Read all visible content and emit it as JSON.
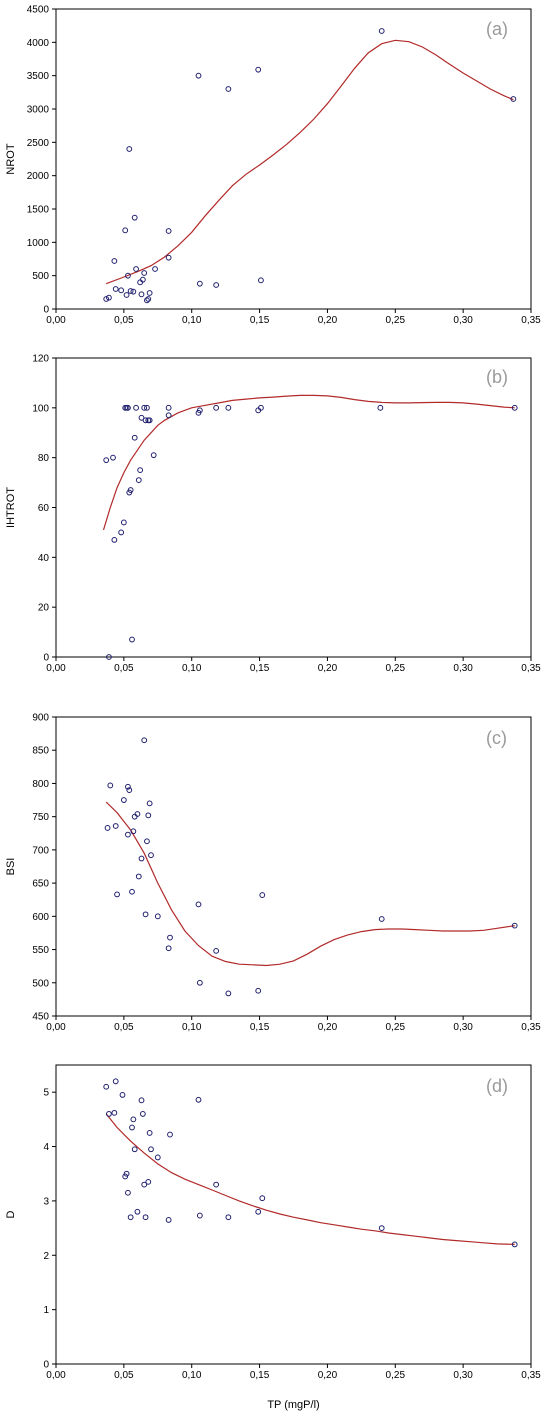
{
  "chart_data": [
    {
      "type": "scatter",
      "panel_label": "(a)",
      "ylabel": "NROT",
      "xlabel": "",
      "xlim": [
        0,
        0.35
      ],
      "ylim": [
        0,
        4500
      ],
      "xticks": [
        0,
        0.05,
        0.1,
        0.15,
        0.2,
        0.25,
        0.3,
        0.35
      ],
      "xtick_labels": [
        "0,00",
        "0,05",
        "0,10",
        "0,15",
        "0,20",
        "0,25",
        "0,30",
        "0,35"
      ],
      "yticks": [
        0,
        500,
        1000,
        1500,
        2000,
        2500,
        3000,
        3500,
        4000,
        4500
      ],
      "ytick_labels": [
        "0",
        "500",
        "1000",
        "1500",
        "2000",
        "2500",
        "3000",
        "3500",
        "4000",
        "4500"
      ],
      "grid": false,
      "points": [
        [
          0.037,
          150
        ],
        [
          0.039,
          170
        ],
        [
          0.043,
          720
        ],
        [
          0.044,
          300
        ],
        [
          0.048,
          280
        ],
        [
          0.051,
          1180
        ],
        [
          0.052,
          210
        ],
        [
          0.053,
          500
        ],
        [
          0.054,
          2400
        ],
        [
          0.055,
          270
        ],
        [
          0.057,
          260
        ],
        [
          0.058,
          1370
        ],
        [
          0.059,
          600
        ],
        [
          0.062,
          400
        ],
        [
          0.063,
          220
        ],
        [
          0.064,
          440
        ],
        [
          0.065,
          540
        ],
        [
          0.067,
          130
        ],
        [
          0.068,
          150
        ],
        [
          0.069,
          240
        ],
        [
          0.073,
          600
        ],
        [
          0.083,
          770
        ],
        [
          0.083,
          1170
        ],
        [
          0.105,
          3500
        ],
        [
          0.106,
          380
        ],
        [
          0.118,
          360
        ],
        [
          0.127,
          3300
        ],
        [
          0.149,
          3590
        ],
        [
          0.151,
          430
        ],
        [
          0.24,
          4170
        ],
        [
          0.337,
          3150
        ]
      ],
      "fit": [
        [
          0.037,
          380
        ],
        [
          0.05,
          480
        ],
        [
          0.06,
          560
        ],
        [
          0.07,
          650
        ],
        [
          0.08,
          780
        ],
        [
          0.09,
          950
        ],
        [
          0.1,
          1150
        ],
        [
          0.11,
          1400
        ],
        [
          0.12,
          1630
        ],
        [
          0.13,
          1850
        ],
        [
          0.14,
          2020
        ],
        [
          0.15,
          2160
        ],
        [
          0.16,
          2310
        ],
        [
          0.17,
          2470
        ],
        [
          0.18,
          2650
        ],
        [
          0.19,
          2850
        ],
        [
          0.2,
          3080
        ],
        [
          0.21,
          3340
        ],
        [
          0.22,
          3610
        ],
        [
          0.23,
          3840
        ],
        [
          0.24,
          3980
        ],
        [
          0.25,
          4030
        ],
        [
          0.26,
          4010
        ],
        [
          0.27,
          3930
        ],
        [
          0.28,
          3810
        ],
        [
          0.29,
          3670
        ],
        [
          0.3,
          3540
        ],
        [
          0.31,
          3420
        ],
        [
          0.32,
          3300
        ],
        [
          0.33,
          3200
        ],
        [
          0.337,
          3140
        ]
      ]
    },
    {
      "type": "scatter",
      "panel_label": "(b)",
      "ylabel": "IHTROT",
      "xlabel": "",
      "xlim": [
        0,
        0.35
      ],
      "ylim": [
        0,
        120
      ],
      "xticks": [
        0,
        0.05,
        0.1,
        0.15,
        0.2,
        0.25,
        0.3,
        0.35
      ],
      "xtick_labels": [
        "0,00",
        "0,05",
        "0,10",
        "0,15",
        "0,20",
        "0,25",
        "0,30",
        "0,35"
      ],
      "yticks": [
        0,
        20,
        40,
        60,
        80,
        100,
        120
      ],
      "ytick_labels": [
        "0",
        "20",
        "40",
        "60",
        "80",
        "100",
        "120"
      ],
      "grid": false,
      "points": [
        [
          0.037,
          79
        ],
        [
          0.039,
          0
        ],
        [
          0.042,
          80
        ],
        [
          0.043,
          47
        ],
        [
          0.048,
          50
        ],
        [
          0.05,
          54
        ],
        [
          0.051,
          100
        ],
        [
          0.052,
          100
        ],
        [
          0.053,
          100
        ],
        [
          0.054,
          66
        ],
        [
          0.055,
          67
        ],
        [
          0.056,
          7
        ],
        [
          0.058,
          88
        ],
        [
          0.059,
          100
        ],
        [
          0.061,
          71
        ],
        [
          0.062,
          75
        ],
        [
          0.063,
          96
        ],
        [
          0.065,
          100
        ],
        [
          0.066,
          95
        ],
        [
          0.067,
          100
        ],
        [
          0.068,
          95
        ],
        [
          0.069,
          95
        ],
        [
          0.072,
          81
        ],
        [
          0.083,
          97
        ],
        [
          0.083,
          100
        ],
        [
          0.105,
          98
        ],
        [
          0.106,
          99
        ],
        [
          0.118,
          100
        ],
        [
          0.127,
          100
        ],
        [
          0.149,
          99
        ],
        [
          0.151,
          100
        ],
        [
          0.239,
          100
        ],
        [
          0.338,
          100
        ]
      ],
      "fit": [
        [
          0.035,
          51
        ],
        [
          0.04,
          60
        ],
        [
          0.045,
          68
        ],
        [
          0.05,
          74
        ],
        [
          0.055,
          79
        ],
        [
          0.06,
          83
        ],
        [
          0.065,
          87
        ],
        [
          0.07,
          90
        ],
        [
          0.075,
          93
        ],
        [
          0.08,
          95
        ],
        [
          0.09,
          98
        ],
        [
          0.1,
          100
        ],
        [
          0.11,
          101
        ],
        [
          0.12,
          102
        ],
        [
          0.13,
          103
        ],
        [
          0.14,
          103.5
        ],
        [
          0.15,
          104
        ],
        [
          0.16,
          104.3
        ],
        [
          0.17,
          104.7
        ],
        [
          0.18,
          105
        ],
        [
          0.19,
          105
        ],
        [
          0.2,
          104.8
        ],
        [
          0.21,
          104.2
        ],
        [
          0.22,
          103.3
        ],
        [
          0.23,
          102.6
        ],
        [
          0.24,
          102.2
        ],
        [
          0.25,
          102
        ],
        [
          0.26,
          102
        ],
        [
          0.27,
          102.1
        ],
        [
          0.28,
          102.2
        ],
        [
          0.29,
          102.2
        ],
        [
          0.3,
          102
        ],
        [
          0.31,
          101.5
        ],
        [
          0.32,
          100.9
        ],
        [
          0.33,
          100.3
        ],
        [
          0.338,
          100
        ]
      ]
    },
    {
      "type": "scatter",
      "panel_label": "(c)",
      "ylabel": "BSI",
      "xlabel": "",
      "xlim": [
        0,
        0.35
      ],
      "ylim": [
        450,
        900
      ],
      "xticks": [
        0,
        0.05,
        0.1,
        0.15,
        0.2,
        0.25,
        0.3,
        0.35
      ],
      "xtick_labels": [
        "0,00",
        "0,05",
        "0,10",
        "0,15",
        "0,20",
        "0,25",
        "0,30",
        "0,35"
      ],
      "yticks": [
        450,
        500,
        550,
        600,
        650,
        700,
        750,
        800,
        850,
        900
      ],
      "ytick_labels": [
        "450",
        "500",
        "550",
        "600",
        "650",
        "700",
        "750",
        "800",
        "850",
        "900"
      ],
      "grid": false,
      "points": [
        [
          0.038,
          733
        ],
        [
          0.04,
          797
        ],
        [
          0.044,
          736
        ],
        [
          0.045,
          633
        ],
        [
          0.05,
          775
        ],
        [
          0.053,
          795
        ],
        [
          0.054,
          790
        ],
        [
          0.053,
          723
        ],
        [
          0.056,
          637
        ],
        [
          0.057,
          728
        ],
        [
          0.058,
          750
        ],
        [
          0.06,
          754
        ],
        [
          0.061,
          660
        ],
        [
          0.063,
          687
        ],
        [
          0.065,
          865
        ],
        [
          0.066,
          603
        ],
        [
          0.067,
          713
        ],
        [
          0.068,
          752
        ],
        [
          0.069,
          770
        ],
        [
          0.07,
          692
        ],
        [
          0.075,
          600
        ],
        [
          0.083,
          552
        ],
        [
          0.084,
          568
        ],
        [
          0.105,
          618
        ],
        [
          0.106,
          500
        ],
        [
          0.118,
          548
        ],
        [
          0.127,
          484
        ],
        [
          0.149,
          488
        ],
        [
          0.152,
          632
        ],
        [
          0.24,
          596
        ],
        [
          0.338,
          586
        ]
      ],
      "fit": [
        [
          0.037,
          772
        ],
        [
          0.045,
          756
        ],
        [
          0.055,
          730
        ],
        [
          0.065,
          695
        ],
        [
          0.075,
          650
        ],
        [
          0.085,
          610
        ],
        [
          0.095,
          578
        ],
        [
          0.105,
          556
        ],
        [
          0.115,
          540
        ],
        [
          0.125,
          532
        ],
        [
          0.135,
          528
        ],
        [
          0.145,
          527
        ],
        [
          0.155,
          526
        ],
        [
          0.165,
          528
        ],
        [
          0.175,
          533
        ],
        [
          0.185,
          543
        ],
        [
          0.195,
          555
        ],
        [
          0.205,
          565
        ],
        [
          0.215,
          572
        ],
        [
          0.225,
          577
        ],
        [
          0.235,
          580
        ],
        [
          0.245,
          581
        ],
        [
          0.255,
          581
        ],
        [
          0.265,
          580
        ],
        [
          0.275,
          579
        ],
        [
          0.285,
          578
        ],
        [
          0.295,
          578
        ],
        [
          0.305,
          578
        ],
        [
          0.315,
          579
        ],
        [
          0.325,
          582
        ],
        [
          0.335,
          585
        ],
        [
          0.338,
          586
        ]
      ]
    },
    {
      "type": "scatter",
      "panel_label": "(d)",
      "ylabel": "D",
      "xlabel": "TP (mgP/l)",
      "xlim": [
        0,
        0.35
      ],
      "ylim": [
        0,
        5.5
      ],
      "xticks": [
        0,
        0.05,
        0.1,
        0.15,
        0.2,
        0.25,
        0.3,
        0.35
      ],
      "xtick_labels": [
        "0,00",
        "0,05",
        "0,10",
        "0,15",
        "0,20",
        "0,25",
        "0,30",
        "0,35"
      ],
      "yticks": [
        0,
        1,
        2,
        3,
        4,
        5
      ],
      "ytick_labels": [
        "0",
        "1",
        "2",
        "3",
        "4",
        "5"
      ],
      "grid": false,
      "points": [
        [
          0.037,
          5.1
        ],
        [
          0.039,
          4.6
        ],
        [
          0.043,
          4.62
        ],
        [
          0.044,
          5.2
        ],
        [
          0.049,
          4.95
        ],
        [
          0.051,
          3.45
        ],
        [
          0.052,
          3.5
        ],
        [
          0.053,
          3.15
        ],
        [
          0.055,
          2.7
        ],
        [
          0.056,
          4.35
        ],
        [
          0.057,
          4.5
        ],
        [
          0.058,
          3.95
        ],
        [
          0.06,
          2.8
        ],
        [
          0.063,
          4.85
        ],
        [
          0.064,
          4.6
        ],
        [
          0.065,
          3.3
        ],
        [
          0.066,
          2.7
        ],
        [
          0.068,
          3.35
        ],
        [
          0.069,
          4.25
        ],
        [
          0.07,
          3.95
        ],
        [
          0.075,
          3.8
        ],
        [
          0.083,
          2.65
        ],
        [
          0.084,
          4.22
        ],
        [
          0.105,
          4.86
        ],
        [
          0.106,
          2.73
        ],
        [
          0.118,
          3.3
        ],
        [
          0.127,
          2.7
        ],
        [
          0.149,
          2.8
        ],
        [
          0.152,
          3.05
        ],
        [
          0.24,
          2.5
        ],
        [
          0.338,
          2.2
        ]
      ],
      "fit": [
        [
          0.037,
          4.6
        ],
        [
          0.045,
          4.35
        ],
        [
          0.055,
          4.1
        ],
        [
          0.065,
          3.88
        ],
        [
          0.075,
          3.68
        ],
        [
          0.085,
          3.52
        ],
        [
          0.095,
          3.4
        ],
        [
          0.105,
          3.3
        ],
        [
          0.115,
          3.2
        ],
        [
          0.125,
          3.1
        ],
        [
          0.135,
          3.0
        ],
        [
          0.145,
          2.91
        ],
        [
          0.155,
          2.83
        ],
        [
          0.165,
          2.76
        ],
        [
          0.175,
          2.7
        ],
        [
          0.185,
          2.65
        ],
        [
          0.195,
          2.6
        ],
        [
          0.205,
          2.56
        ],
        [
          0.215,
          2.52
        ],
        [
          0.225,
          2.48
        ],
        [
          0.235,
          2.45
        ],
        [
          0.245,
          2.41
        ],
        [
          0.255,
          2.38
        ],
        [
          0.265,
          2.35
        ],
        [
          0.275,
          2.32
        ],
        [
          0.285,
          2.29
        ],
        [
          0.295,
          2.27
        ],
        [
          0.305,
          2.25
        ],
        [
          0.315,
          2.23
        ],
        [
          0.325,
          2.21
        ],
        [
          0.338,
          2.2
        ]
      ]
    }
  ],
  "colors": {
    "marker": "#1f1f6e",
    "fit_line": "#b22a2a",
    "axis": "#000000",
    "panel_label": "#9a9a9a"
  }
}
